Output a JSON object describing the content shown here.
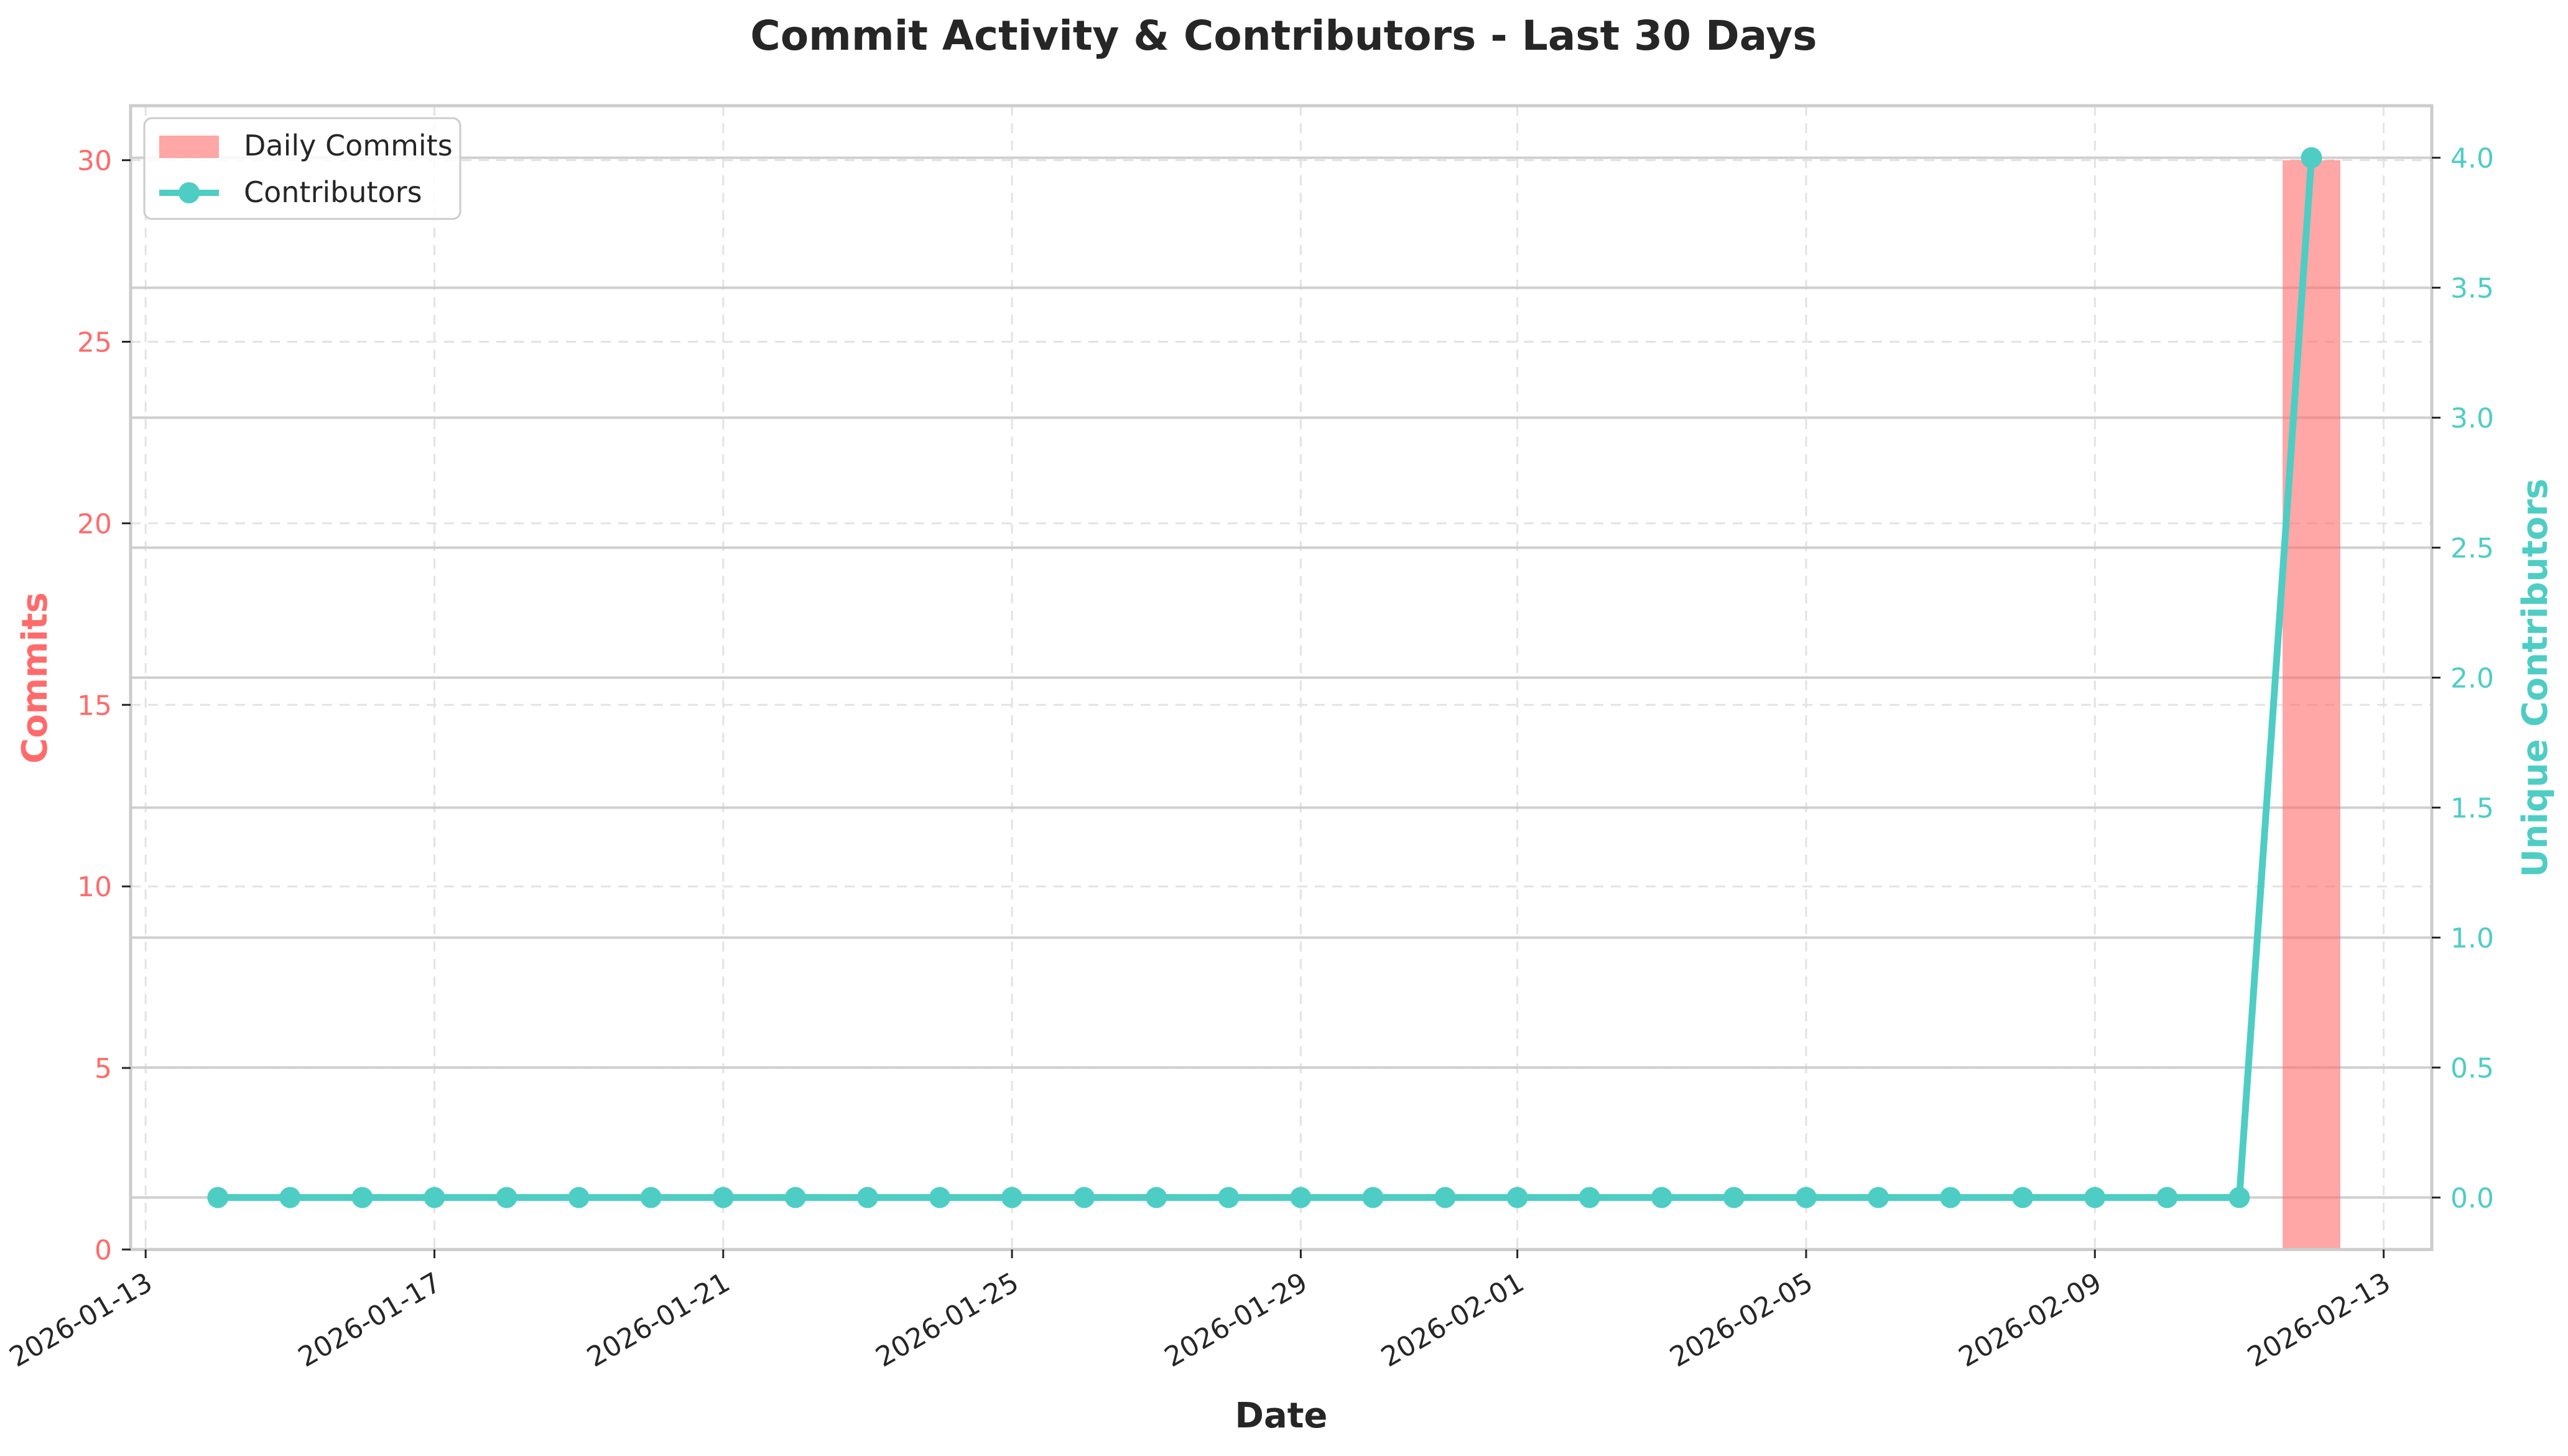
{
  "chart_data": {
    "type": "bar+line",
    "title": "Commit Activity & Contributors - Last 30 Days",
    "xlabel": "Date",
    "ylabel_left": "Commits",
    "ylabel_right": "Unique Contributors",
    "x_tick_labels": [
      "2026-01-13",
      "2026-01-17",
      "2026-01-21",
      "2026-01-25",
      "2026-01-29",
      "2026-02-01",
      "2026-02-05",
      "2026-02-09",
      "2026-02-13"
    ],
    "y_left_ticks": [
      "0",
      "5",
      "10",
      "15",
      "20",
      "25",
      "30"
    ],
    "y_right_ticks": [
      "0.0",
      "0.5",
      "1.0",
      "1.5",
      "2.0",
      "2.5",
      "3.0",
      "3.5",
      "4.0"
    ],
    "y_left_lim": [
      0,
      31.5
    ],
    "y_right_lim": [
      -0.2,
      4.2
    ],
    "x_range": [
      "2026-01-12T19:00",
      "2026-02-13T16:00"
    ],
    "dates": [
      "2026-01-14",
      "2026-01-15",
      "2026-01-16",
      "2026-01-17",
      "2026-01-18",
      "2026-01-19",
      "2026-01-20",
      "2026-01-21",
      "2026-01-22",
      "2026-01-23",
      "2026-01-24",
      "2026-01-25",
      "2026-01-26",
      "2026-01-27",
      "2026-01-28",
      "2026-01-29",
      "2026-01-30",
      "2026-01-31",
      "2026-02-01",
      "2026-02-02",
      "2026-02-03",
      "2026-02-04",
      "2026-02-05",
      "2026-02-06",
      "2026-02-07",
      "2026-02-08",
      "2026-02-09",
      "2026-02-10",
      "2026-02-11",
      "2026-02-12"
    ],
    "series": [
      {
        "name": "Daily Commits",
        "kind": "bar",
        "axis": "left",
        "color": "#ff6b6b",
        "values": [
          0,
          0,
          0,
          0,
          0,
          0,
          0,
          0,
          0,
          0,
          0,
          0,
          0,
          0,
          0,
          0,
          0,
          0,
          0,
          0,
          0,
          0,
          0,
          0,
          0,
          0,
          0,
          0,
          0,
          30
        ]
      },
      {
        "name": "Contributors",
        "kind": "line",
        "axis": "right",
        "color": "#4ecdc4",
        "values": [
          0,
          0,
          0,
          0,
          0,
          0,
          0,
          0,
          0,
          0,
          0,
          0,
          0,
          0,
          0,
          0,
          0,
          0,
          0,
          0,
          0,
          0,
          0,
          0,
          0,
          0,
          0,
          0,
          0,
          4
        ]
      }
    ],
    "legend_position": "top-left",
    "grid": true
  },
  "colors": {
    "commits": "#ff6b6b",
    "contributors": "#4ecdc4",
    "text": "#262626",
    "spine": "#cccccc"
  }
}
